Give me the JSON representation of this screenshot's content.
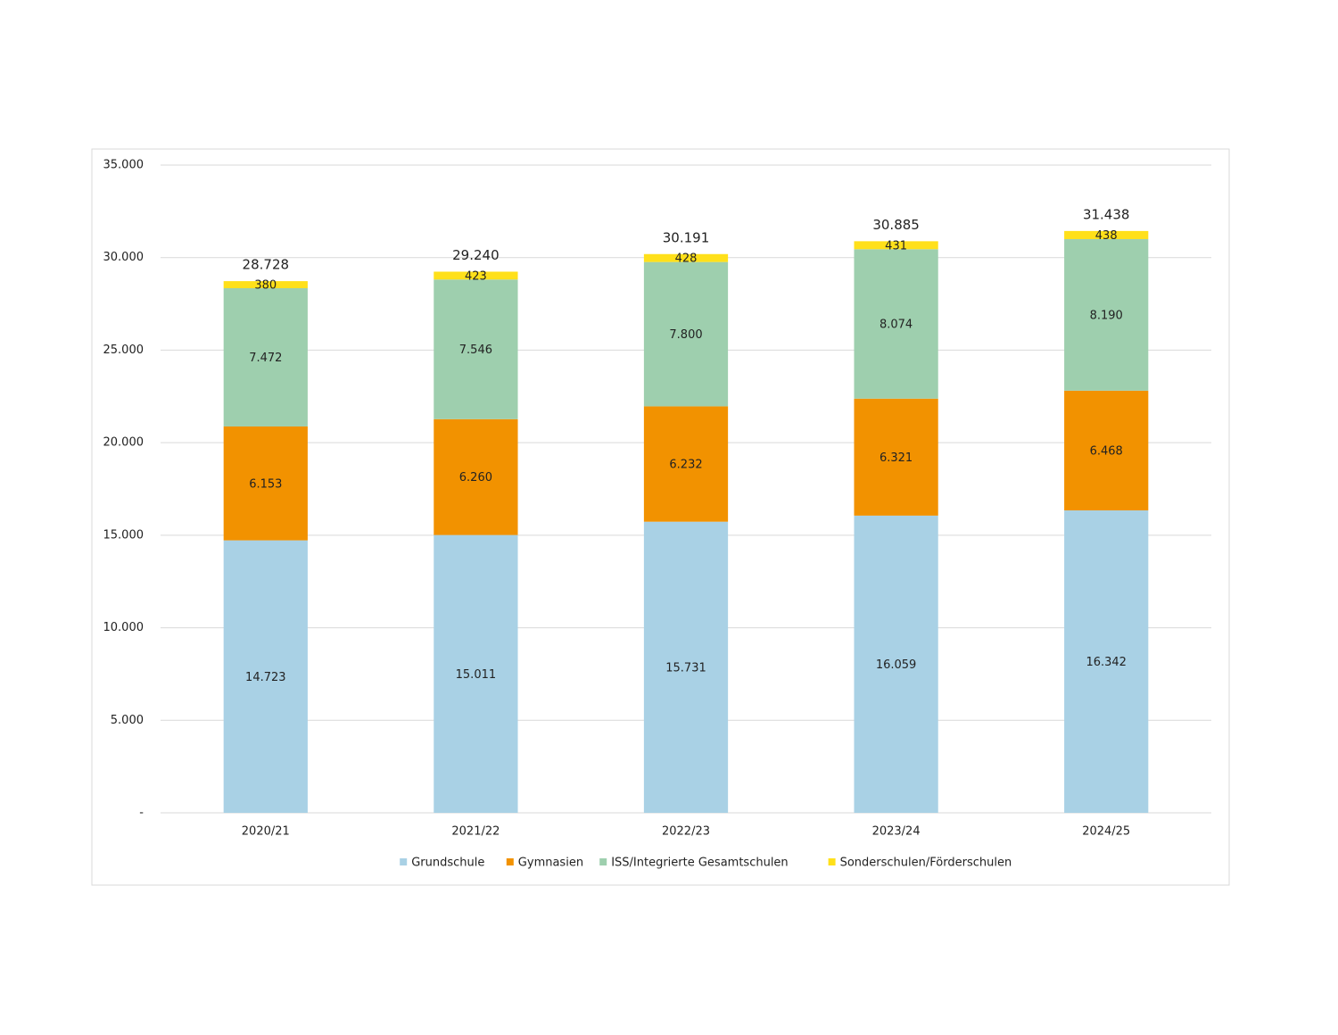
{
  "chart_data": {
    "type": "stacked_bar",
    "categories": [
      "2020/21",
      "2021/22",
      "2022/23",
      "2023/24",
      "2024/25"
    ],
    "series": [
      {
        "name": "Grundschule",
        "color": "#a9d1e5",
        "values": [
          14723,
          15011,
          15731,
          16059,
          16342
        ],
        "value_labels": [
          "14.723",
          "15.011",
          "15.731",
          "16.059",
          "16.342"
        ]
      },
      {
        "name": "Gymnasien",
        "color": "#f29200",
        "values": [
          6153,
          6260,
          6232,
          6321,
          6468
        ],
        "value_labels": [
          "6.153",
          "6.260",
          "6.232",
          "6.321",
          "6.468"
        ]
      },
      {
        "name": "ISS/Integrierte Gesamtschulen",
        "color": "#9ecfae",
        "values": [
          7472,
          7546,
          7800,
          8074,
          8190
        ],
        "value_labels": [
          "7.472",
          "7.546",
          "7.800",
          "8.074",
          "8.190"
        ]
      },
      {
        "name": "Sonderschulen/Förderschulen",
        "color": "#ffe01a",
        "values": [
          380,
          423,
          428,
          431,
          438
        ],
        "value_labels": [
          "380",
          "423",
          "428",
          "431",
          "438"
        ]
      }
    ],
    "totals": {
      "values": [
        28728,
        29240,
        30191,
        30885,
        31438
      ],
      "value_labels": [
        "28.728",
        "29.240",
        "30.191",
        "30.885",
        "31.438"
      ]
    },
    "ylim": [
      0,
      35000
    ],
    "yticks": [
      {
        "value": 0,
        "label": "-"
      },
      {
        "value": 5000,
        "label": "5.000"
      },
      {
        "value": 10000,
        "label": "10.000"
      },
      {
        "value": 15000,
        "label": "15.000"
      },
      {
        "value": 20000,
        "label": "20.000"
      },
      {
        "value": 25000,
        "label": "25.000"
      },
      {
        "value": 30000,
        "label": "30.000"
      },
      {
        "value": 35000,
        "label": "35.000"
      }
    ],
    "grid": true,
    "legend": "bottom"
  }
}
